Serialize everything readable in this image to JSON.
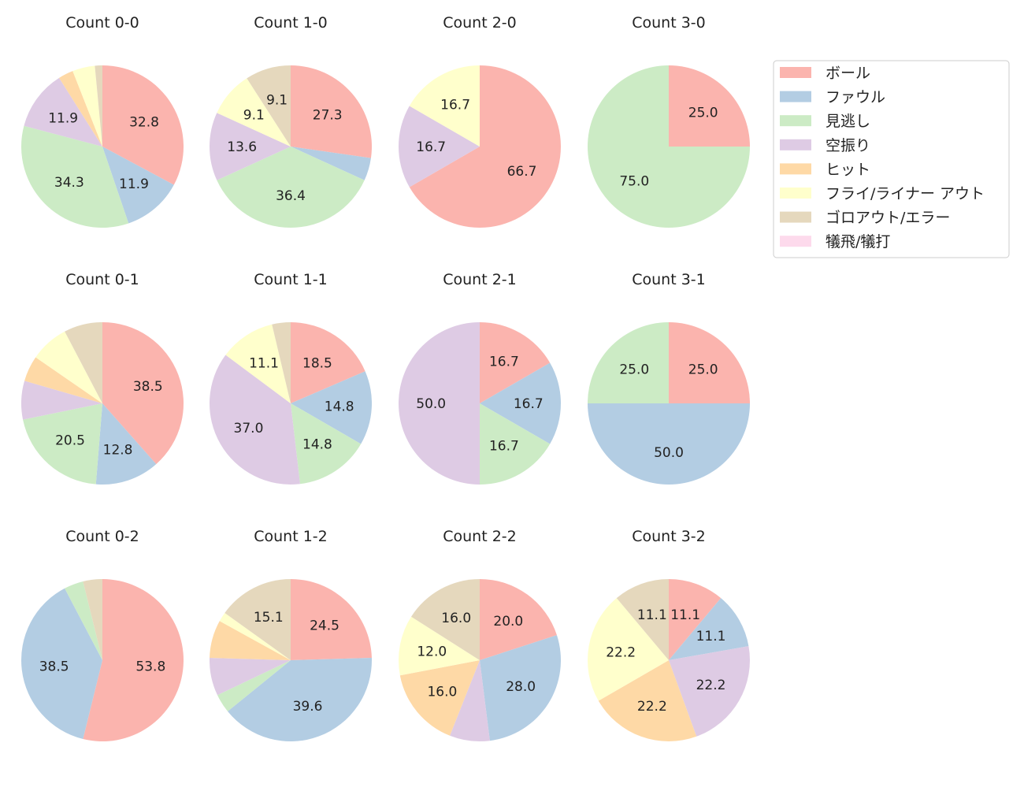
{
  "chart_data": {
    "type": "pie",
    "direction": "clockwise",
    "start": "top",
    "label_format": "percent, one decimal, shown on larger slices only",
    "categories": [
      "ボール",
      "ファウル",
      "見逃し",
      "空振り",
      "ヒット",
      "フライ/ライナー アウト",
      "ゴロアウト/エラー",
      "犠飛/犠打"
    ],
    "colors": [
      "#fbb4ae",
      "#b3cde3",
      "#ccebc5",
      "#decbe4",
      "#fed9a6",
      "#ffffcc",
      "#e5d8bd",
      "#fddaec"
    ],
    "legend_position": "right",
    "charts": [
      {
        "title": "Count 0-0",
        "values": [
          22,
          8,
          23,
          8,
          2,
          3,
          1,
          0
        ]
      },
      {
        "title": "Count 1-0",
        "values": [
          6,
          1,
          8,
          3,
          0,
          2,
          2,
          0
        ]
      },
      {
        "title": "Count 2-0",
        "values": [
          4,
          0,
          0,
          1,
          0,
          1,
          0,
          0
        ]
      },
      {
        "title": "Count 3-0",
        "values": [
          1,
          0,
          3,
          0,
          0,
          0,
          0,
          0
        ]
      },
      {
        "title": "Count 0-1",
        "values": [
          15,
          5,
          8,
          3,
          2,
          3,
          3,
          0
        ]
      },
      {
        "title": "Count 1-1",
        "values": [
          5,
          4,
          4,
          10,
          0,
          3,
          1,
          0
        ]
      },
      {
        "title": "Count 2-1",
        "values": [
          1,
          1,
          1,
          3,
          0,
          0,
          0,
          0
        ]
      },
      {
        "title": "Count 3-1",
        "values": [
          1,
          2,
          1,
          0,
          0,
          0,
          0,
          0
        ]
      },
      {
        "title": "Count 0-2",
        "values": [
          14,
          10,
          1,
          0,
          0,
          0,
          1,
          0
        ]
      },
      {
        "title": "Count 1-2",
        "values": [
          13,
          21,
          2,
          4,
          4,
          1,
          8,
          0
        ]
      },
      {
        "title": "Count 2-2",
        "values": [
          5,
          7,
          0,
          2,
          4,
          3,
          4,
          0
        ]
      },
      {
        "title": "Count 3-2",
        "values": [
          1,
          1,
          0,
          2,
          2,
          2,
          1,
          0
        ]
      }
    ]
  }
}
